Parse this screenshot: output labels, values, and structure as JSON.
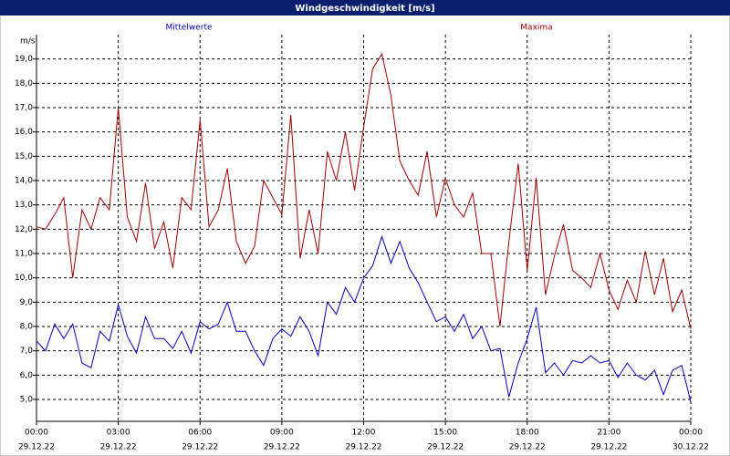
{
  "chart_data": {
    "type": "line",
    "title": "Windgeschwindigkeit [m/s]",
    "y_label": "m/s",
    "x": [
      0,
      0.33,
      0.67,
      1,
      1.33,
      1.67,
      2,
      2.33,
      2.67,
      3,
      3.33,
      3.67,
      4,
      4.33,
      4.67,
      5,
      5.33,
      5.67,
      6,
      6.33,
      6.67,
      7,
      7.33,
      7.67,
      8,
      8.33,
      8.67,
      9,
      9.33,
      9.67,
      10,
      10.33,
      10.67,
      11,
      11.33,
      11.67,
      12,
      12.33,
      12.67,
      13,
      13.33,
      13.67,
      14,
      14.33,
      14.67,
      15,
      15.33,
      15.67,
      16,
      16.33,
      16.67,
      17,
      17.33,
      17.67,
      18,
      18.33,
      18.67,
      19,
      19.33,
      19.67,
      20,
      20.33,
      20.67,
      21,
      21.33,
      21.67,
      22,
      22.33,
      22.67,
      23,
      23.33,
      23.67,
      24
    ],
    "series": [
      {
        "name": "Mittelwerte",
        "color": "#0000c0",
        "values": [
          7.4,
          7.0,
          8.1,
          7.5,
          8.1,
          6.5,
          6.3,
          7.8,
          7.4,
          8.9,
          7.6,
          6.9,
          8.4,
          7.5,
          7.5,
          7.1,
          7.8,
          6.9,
          8.2,
          7.9,
          8.1,
          9.0,
          7.8,
          7.8,
          7.0,
          6.4,
          7.5,
          7.9,
          7.6,
          8.4,
          7.8,
          6.8,
          9.0,
          8.5,
          9.6,
          9.0,
          10.0,
          10.5,
          11.7,
          10.6,
          11.5,
          10.4,
          9.8,
          9.0,
          8.2,
          8.4,
          7.8,
          8.5,
          7.5,
          8.0,
          7.0,
          7.1,
          5.1,
          6.5,
          7.5,
          8.8,
          6.1,
          6.5,
          6.0,
          6.6,
          6.5,
          6.8,
          6.5,
          6.6,
          5.9,
          6.5,
          6.0,
          5.8,
          6.2,
          5.2,
          6.2,
          6.4,
          4.9
        ]
      },
      {
        "name": "Maxima",
        "color": "#a00000",
        "values": [
          12.1,
          12.0,
          12.6,
          13.3,
          10.0,
          12.8,
          12.0,
          13.3,
          12.8,
          17.0,
          12.5,
          11.5,
          13.9,
          11.2,
          12.3,
          10.4,
          13.3,
          12.8,
          16.5,
          12.1,
          12.8,
          14.5,
          11.5,
          10.6,
          11.3,
          14.0,
          13.3,
          12.6,
          16.7,
          10.8,
          12.8,
          11.0,
          15.2,
          14.0,
          16.0,
          13.6,
          16.2,
          18.6,
          19.2,
          17.5,
          14.8,
          14.0,
          13.4,
          15.2,
          12.5,
          14.1,
          13.0,
          12.5,
          13.5,
          11.0,
          11.0,
          8.0,
          11.5,
          14.7,
          10.3,
          14.1,
          9.3,
          10.9,
          12.2,
          10.3,
          10.0,
          9.6,
          11.0,
          9.5,
          8.7,
          9.9,
          9.0,
          11.1,
          9.3,
          10.8,
          8.6,
          9.5,
          7.9
        ]
      }
    ],
    "xlim": [
      0,
      24
    ],
    "xticks": [
      {
        "value": 0,
        "label": "00:00"
      },
      {
        "value": 3,
        "label": "03:00"
      },
      {
        "value": 6,
        "label": "06:00"
      },
      {
        "value": 9,
        "label": "09:00"
      },
      {
        "value": 12,
        "label": "12:00"
      },
      {
        "value": 15,
        "label": "15:00"
      },
      {
        "value": 18,
        "label": "18:00"
      },
      {
        "value": 21,
        "label": "21:00"
      },
      {
        "value": 24,
        "label": "00:00"
      }
    ],
    "xtick_dates": [
      "29.12.22",
      "29.12.22",
      "29.12.22",
      "29.12.22",
      "29.12.22",
      "29.12.22",
      "29.12.22",
      "29.12.22",
      "30.12.22"
    ],
    "ylim": [
      4.1,
      20
    ],
    "yticks": [
      {
        "value": 5,
        "label": "5,0"
      },
      {
        "value": 6,
        "label": "6,0"
      },
      {
        "value": 7,
        "label": "7,0"
      },
      {
        "value": 8,
        "label": "8,0"
      },
      {
        "value": 9,
        "label": "9,0"
      },
      {
        "value": 10,
        "label": "10,0"
      },
      {
        "value": 11,
        "label": "11,0"
      },
      {
        "value": 12,
        "label": "12,0"
      },
      {
        "value": 13,
        "label": "13,0"
      },
      {
        "value": 14,
        "label": "14,0"
      },
      {
        "value": 15,
        "label": "15,0"
      },
      {
        "value": 16,
        "label": "16,0"
      },
      {
        "value": 17,
        "label": "17,0"
      },
      {
        "value": 18,
        "label": "18,0"
      },
      {
        "value": 19,
        "label": "19,0"
      }
    ],
    "grid": true
  }
}
